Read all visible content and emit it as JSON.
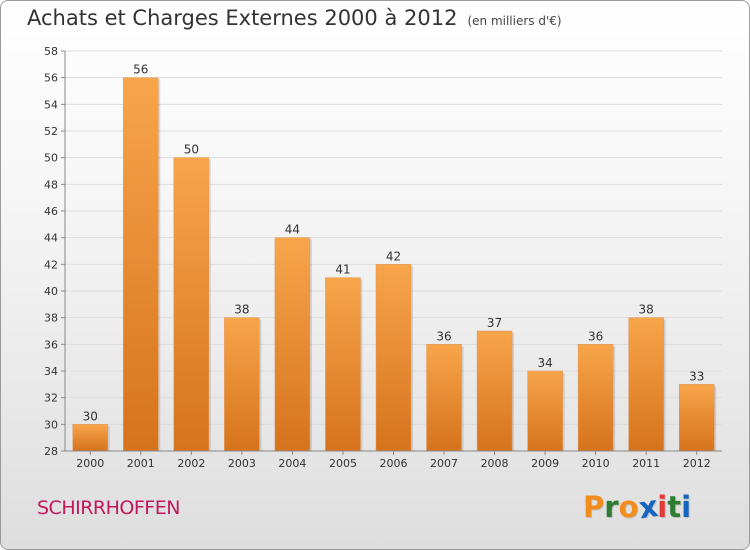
{
  "header": {
    "title": "Achats et Charges Externes 2000 à 2012",
    "subtitle": "(en milliers d'€)"
  },
  "footer": {
    "commune": "SCHIRRHOFFEN",
    "logo_text": "Proxiti"
  },
  "colors": {
    "bar_light": "#f7a54b",
    "bar_dark": "#d6731c",
    "commune": "#c2185b",
    "logo_letters": [
      "#f28c1c",
      "#2e7d32",
      "#f28c1c",
      "#1565c0",
      "#e53935",
      "#2e7d32",
      "#1565c0"
    ]
  },
  "chart_data": {
    "type": "bar",
    "title": "Achats et Charges Externes 2000 à 2012",
    "subtitle": "(en milliers d'€)",
    "categories": [
      "2000",
      "2001",
      "2002",
      "2003",
      "2004",
      "2005",
      "2006",
      "2007",
      "2008",
      "2009",
      "2010",
      "2011",
      "2012"
    ],
    "values": [
      30,
      56,
      50,
      38,
      44,
      41,
      42,
      36,
      37,
      34,
      36,
      38,
      33
    ],
    "data_labels": [
      "30",
      "56",
      "50",
      "38",
      "44",
      "41",
      "42",
      "36",
      "37",
      "34",
      "36",
      "38",
      "33"
    ],
    "ylim": [
      28,
      58
    ],
    "yticks": [
      "28",
      "30",
      "32",
      "34",
      "36",
      "38",
      "40",
      "42",
      "44",
      "46",
      "48",
      "50",
      "52",
      "54",
      "56",
      "58"
    ],
    "grid": true,
    "legend": "none"
  }
}
